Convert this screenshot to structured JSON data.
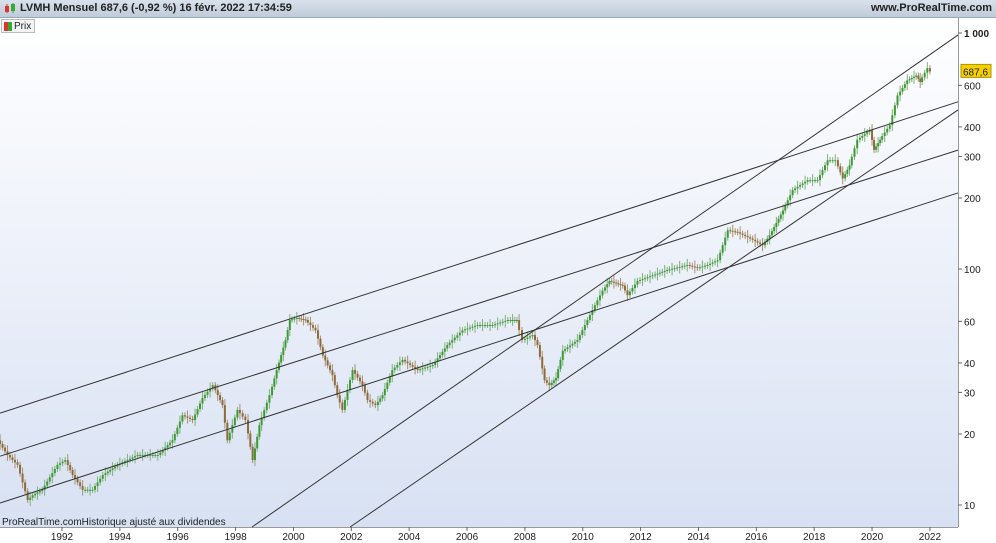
{
  "header": {
    "title": "LVMH Mensuel 687,6 (-0,92 %) 16 févr. 2022 17:34:59",
    "site": "www.ProRealTime.com"
  },
  "legend": {
    "label": "Prix"
  },
  "footer_note": "ProRealTime.comHistorique ajusté aux dividendes",
  "chart_data": {
    "type": "line",
    "style": "candlestick-monthly",
    "yscale": "log",
    "ylim": [
      8,
      1100
    ],
    "xlim": [
      1989.86,
      2022.97
    ],
    "last_price": {
      "value": 687.6,
      "label": "687,6",
      "color": "#f5d000"
    },
    "colors": {
      "up": "#3c9a32",
      "down": "#8c6a3a",
      "trendline": "#333333"
    },
    "x_ticks": [
      "1992",
      "1994",
      "1996",
      "1998",
      "2000",
      "2002",
      "2004",
      "2006",
      "2008",
      "2010",
      "2012",
      "2014",
      "2016",
      "2018",
      "2020",
      "2022"
    ],
    "y_ticks": [
      {
        "v": 10,
        "label": "10"
      },
      {
        "v": 20,
        "label": "20"
      },
      {
        "v": 30,
        "label": "30"
      },
      {
        "v": 40,
        "label": "40"
      },
      {
        "v": 60,
        "label": "60"
      },
      {
        "v": 100,
        "label": "100"
      },
      {
        "v": 200,
        "label": "200"
      },
      {
        "v": 300,
        "label": "300"
      },
      {
        "v": 400,
        "label": "400"
      },
      {
        "v": 600,
        "label": "600"
      },
      {
        "v": 1000,
        "label": "1 000"
      }
    ],
    "price": [
      [
        1989.86,
        18.8
      ],
      [
        1990.2,
        16.3
      ],
      [
        1990.55,
        14.8
      ],
      [
        1990.9,
        10.5
      ],
      [
        1991.07,
        11
      ],
      [
        1991.4,
        11.6
      ],
      [
        1991.93,
        14.8
      ],
      [
        1992.2,
        15.5
      ],
      [
        1992.45,
        13.4
      ],
      [
        1992.8,
        11.6
      ],
      [
        1993.14,
        11.6
      ],
      [
        1993.5,
        13.4
      ],
      [
        1994.0,
        14.8
      ],
      [
        1994.7,
        16.3
      ],
      [
        1995.4,
        16.3
      ],
      [
        1995.9,
        18.8
      ],
      [
        1996.25,
        24
      ],
      [
        1996.6,
        22.9
      ],
      [
        1996.94,
        28.4
      ],
      [
        1997.3,
        32.2
      ],
      [
        1997.63,
        26.5
      ],
      [
        1997.8,
        18.8
      ],
      [
        1998.15,
        25.3
      ],
      [
        1998.43,
        22.9
      ],
      [
        1998.67,
        15.5
      ],
      [
        1998.9,
        21.8
      ],
      [
        1999.26,
        29.2
      ],
      [
        1999.5,
        37.3
      ],
      [
        1999.8,
        50
      ],
      [
        1999.95,
        60.8
      ],
      [
        2000.2,
        62
      ],
      [
        2000.5,
        60.8
      ],
      [
        2000.85,
        55
      ],
      [
        2001.1,
        43
      ],
      [
        2001.43,
        35.5
      ],
      [
        2001.6,
        29.2
      ],
      [
        2001.78,
        25.3
      ],
      [
        2002.13,
        37.3
      ],
      [
        2002.47,
        32.2
      ],
      [
        2002.65,
        27.8
      ],
      [
        2002.92,
        26.5
      ],
      [
        2003.16,
        29.2
      ],
      [
        2003.5,
        37.3
      ],
      [
        2003.86,
        41.2
      ],
      [
        2004.38,
        37.3
      ],
      [
        2004.9,
        39.2
      ],
      [
        2005.4,
        47.6
      ],
      [
        2005.93,
        55
      ],
      [
        2006.45,
        57.9
      ],
      [
        2006.97,
        57.9
      ],
      [
        2007.5,
        60.8
      ],
      [
        2007.8,
        60.8
      ],
      [
        2008.0,
        50
      ],
      [
        2008.35,
        52.5
      ],
      [
        2008.52,
        47.6
      ],
      [
        2008.76,
        33.8
      ],
      [
        2008.93,
        32.2
      ],
      [
        2009.15,
        34.5
      ],
      [
        2009.39,
        45
      ],
      [
        2009.9,
        50
      ],
      [
        2010.42,
        67
      ],
      [
        2010.77,
        81
      ],
      [
        2011.0,
        89
      ],
      [
        2011.46,
        85
      ],
      [
        2011.63,
        77.5
      ],
      [
        2011.98,
        89
      ],
      [
        2012.5,
        94
      ],
      [
        2013.0,
        99
      ],
      [
        2013.7,
        104
      ],
      [
        2014.05,
        101
      ],
      [
        2014.4,
        104
      ],
      [
        2014.75,
        109
      ],
      [
        2015.1,
        146
      ],
      [
        2015.44,
        143
      ],
      [
        2015.96,
        133
      ],
      [
        2016.3,
        126
      ],
      [
        2016.54,
        139
      ],
      [
        2017.0,
        177
      ],
      [
        2017.34,
        216
      ],
      [
        2017.86,
        238
      ],
      [
        2018.2,
        238
      ],
      [
        2018.55,
        289
      ],
      [
        2018.82,
        289
      ],
      [
        2019.07,
        242
      ],
      [
        2019.3,
        275
      ],
      [
        2019.58,
        353
      ],
      [
        2020.0,
        388
      ],
      [
        2020.14,
        320
      ],
      [
        2020.35,
        353
      ],
      [
        2020.7,
        407
      ],
      [
        2020.97,
        544
      ],
      [
        2021.3,
        630
      ],
      [
        2021.6,
        660
      ],
      [
        2021.73,
        620
      ],
      [
        2022.0,
        710
      ],
      [
        2022.1,
        687.6
      ]
    ],
    "trendlines": [
      [
        [
          1989.86,
          24.5
        ],
        [
          2022.97,
          511
        ]
      ],
      [
        [
          1989.86,
          16.1
        ],
        [
          2022.97,
          319
        ]
      ],
      [
        [
          1989.86,
          10.2
        ],
        [
          2022.97,
          210
        ]
      ],
      [
        [
          1998.57,
          8.07
        ],
        [
          2022.97,
          980
        ]
      ],
      [
        [
          2001.96,
          8.07
        ],
        [
          2022.97,
          472
        ]
      ]
    ]
  }
}
